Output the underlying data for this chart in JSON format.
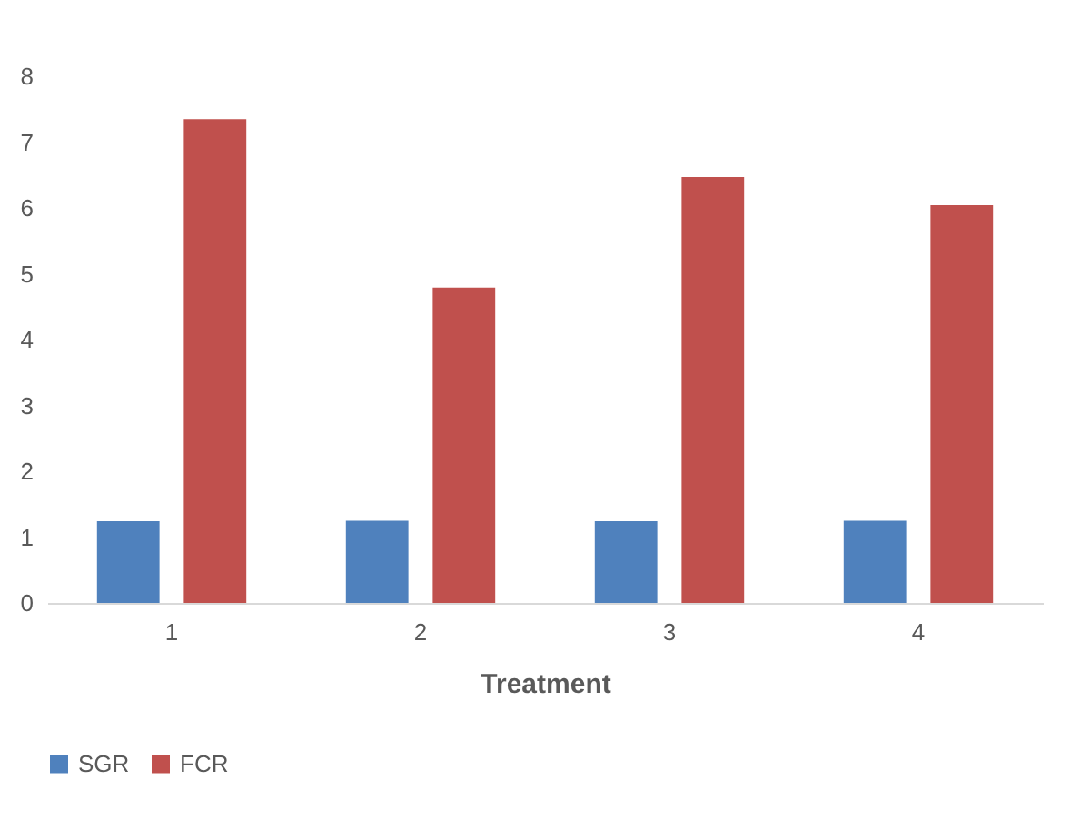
{
  "chart_data": {
    "type": "bar",
    "xlabel": "Treatment",
    "categories": [
      "1",
      "2",
      "3",
      "4"
    ],
    "series": [
      {
        "name": "SGR",
        "color": "#4f81bd",
        "values": [
          1.24,
          1.25,
          1.24,
          1.25
        ]
      },
      {
        "name": "FCR",
        "color": "#c0504d",
        "values": [
          7.35,
          4.79,
          6.47,
          6.04
        ]
      }
    ],
    "ylim": [
      0,
      8
    ],
    "yticks": [
      0,
      1,
      2,
      3,
      4,
      5,
      6,
      7,
      8
    ],
    "grid": false,
    "legend": "bottom"
  }
}
